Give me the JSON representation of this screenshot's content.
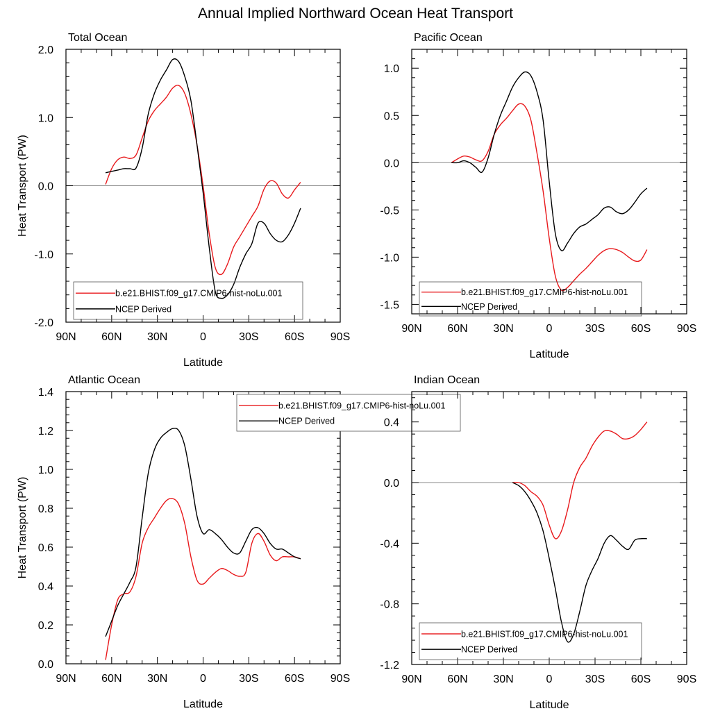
{
  "figure_title": "Annual Implied Northward Ocean Heat Transport",
  "legend": {
    "model_label": "b.e21.BHIST.f09_g17.CMIP6-hist-noLu.001",
    "obs_label": "NCEP Derived"
  },
  "colors": {
    "model": "#e8191c",
    "obs": "#000000",
    "zero_line": "#888888",
    "frame": "#000000"
  },
  "chart_data": [
    {
      "type": "line",
      "title": "Total Ocean",
      "xlabel": "Latitude",
      "ylabel": "Heat Transport (PW)",
      "x_axis_note": "latitude in degrees, positive = north",
      "xlim": [
        90,
        -90
      ],
      "x_ticks": [
        90,
        60,
        30,
        0,
        -30,
        -60,
        -90
      ],
      "x_tick_labels": [
        "90N",
        "60N",
        "30N",
        "0",
        "30S",
        "60S",
        "90S"
      ],
      "ylim": [
        -2.0,
        2.0
      ],
      "y_ticks": [
        -2.0,
        -1.0,
        0.0,
        1.0,
        2.0
      ],
      "y_tick_labels": [
        "-2.0",
        "-1.0",
        "0.0",
        "1.0",
        "2.0"
      ],
      "legend_position": "bottom-left",
      "series": [
        {
          "name": "b.e21.BHIST.f09_g17.CMIP6-hist-noLu.001",
          "color": "#e8191c",
          "x": [
            64,
            60,
            56,
            52,
            48,
            44,
            40,
            36,
            32,
            28,
            24,
            20,
            16,
            12,
            8,
            4,
            0,
            -4,
            -8,
            -12,
            -16,
            -20,
            -24,
            -28,
            -32,
            -36,
            -40,
            -44,
            -48,
            -52,
            -56,
            -60,
            -64
          ],
          "y": [
            0.02,
            0.25,
            0.38,
            0.42,
            0.4,
            0.45,
            0.7,
            0.95,
            1.1,
            1.2,
            1.3,
            1.43,
            1.47,
            1.35,
            1.05,
            0.6,
            0.0,
            -0.7,
            -1.2,
            -1.3,
            -1.15,
            -0.9,
            -0.75,
            -0.6,
            -0.45,
            -0.3,
            -0.05,
            0.07,
            0.04,
            -0.12,
            -0.18,
            -0.06,
            0.05
          ]
        },
        {
          "name": "NCEP Derived",
          "color": "#000000",
          "x": [
            64,
            60,
            56,
            52,
            48,
            44,
            40,
            36,
            32,
            28,
            24,
            20,
            16,
            12,
            8,
            4,
            0,
            -4,
            -8,
            -12,
            -16,
            -20,
            -24,
            -28,
            -32,
            -36,
            -40,
            -44,
            -48,
            -52,
            -56,
            -60,
            -64
          ],
          "y": [
            0.19,
            0.21,
            0.23,
            0.25,
            0.25,
            0.26,
            0.55,
            1.05,
            1.35,
            1.55,
            1.7,
            1.85,
            1.82,
            1.6,
            1.25,
            0.6,
            -0.1,
            -0.9,
            -1.55,
            -1.65,
            -1.6,
            -1.45,
            -1.2,
            -1.0,
            -0.85,
            -0.55,
            -0.55,
            -0.7,
            -0.8,
            -0.82,
            -0.72,
            -0.55,
            -0.33
          ]
        }
      ]
    },
    {
      "type": "line",
      "title": "Pacific Ocean",
      "xlabel": "Latitude",
      "ylabel": "",
      "xlim": [
        90,
        -90
      ],
      "x_ticks": [
        90,
        60,
        30,
        0,
        -30,
        -60,
        -90
      ],
      "x_tick_labels": [
        "90N",
        "60N",
        "30N",
        "0",
        "30S",
        "60S",
        "90S"
      ],
      "ylim": [
        -1.6,
        1.2
      ],
      "y_ticks": [
        -1.5,
        -1.0,
        -0.5,
        0.0,
        0.5,
        1.0
      ],
      "y_tick_labels": [
        "-1.5",
        "-1.0",
        "-0.5",
        "0.0",
        "0.5",
        "1.0"
      ],
      "legend_position": "bottom-left",
      "series": [
        {
          "name": "b.e21.BHIST.f09_g17.CMIP6-hist-noLu.001",
          "color": "#e8191c",
          "x": [
            64,
            60,
            56,
            52,
            48,
            44,
            40,
            36,
            32,
            28,
            24,
            20,
            16,
            12,
            8,
            4,
            0,
            -4,
            -8,
            -12,
            -16,
            -20,
            -24,
            -28,
            -32,
            -36,
            -40,
            -44,
            -48,
            -52,
            -56,
            -60,
            -64
          ],
          "y": [
            0.0,
            0.04,
            0.07,
            0.06,
            0.03,
            0.02,
            0.12,
            0.3,
            0.4,
            0.47,
            0.55,
            0.62,
            0.6,
            0.45,
            0.1,
            -0.3,
            -0.8,
            -1.2,
            -1.35,
            -1.32,
            -1.25,
            -1.18,
            -1.12,
            -1.05,
            -0.98,
            -0.93,
            -0.91,
            -0.92,
            -0.95,
            -1.0,
            -1.04,
            -1.03,
            -0.92
          ]
        },
        {
          "name": "NCEP Derived",
          "color": "#000000",
          "x": [
            64,
            60,
            56,
            52,
            48,
            44,
            40,
            36,
            32,
            28,
            24,
            20,
            16,
            12,
            8,
            4,
            0,
            -4,
            -8,
            -12,
            -16,
            -20,
            -24,
            -28,
            -32,
            -36,
            -40,
            -44,
            -48,
            -52,
            -56,
            -60,
            -64
          ],
          "y": [
            0.0,
            0.0,
            0.02,
            0.0,
            -0.05,
            -0.1,
            0.05,
            0.3,
            0.5,
            0.65,
            0.8,
            0.9,
            0.96,
            0.92,
            0.75,
            0.45,
            -0.2,
            -0.75,
            -0.93,
            -0.85,
            -0.75,
            -0.68,
            -0.65,
            -0.6,
            -0.55,
            -0.48,
            -0.47,
            -0.52,
            -0.54,
            -0.5,
            -0.42,
            -0.33,
            -0.27
          ]
        }
      ]
    },
    {
      "type": "line",
      "title": "Atlantic Ocean",
      "xlabel": "Latitude",
      "ylabel": "Heat Transport (PW)",
      "xlim": [
        90,
        -90
      ],
      "x_ticks": [
        90,
        60,
        30,
        0,
        -30,
        -60,
        -90
      ],
      "x_tick_labels": [
        "90N",
        "60N",
        "30N",
        "0",
        "30S",
        "60S",
        "90S"
      ],
      "ylim": [
        0.0,
        1.4
      ],
      "y_ticks": [
        0.0,
        0.2,
        0.4,
        0.6,
        0.8,
        1.0,
        1.2,
        1.4
      ],
      "y_tick_labels": [
        "0.0",
        "0.2",
        "0.4",
        "0.6",
        "0.8",
        "1.0",
        "1.2",
        "1.4"
      ],
      "legend_position": "top-center",
      "series": [
        {
          "name": "b.e21.BHIST.f09_g17.CMIP6-hist-noLu.001",
          "color": "#e8191c",
          "x": [
            64,
            60,
            56,
            52,
            48,
            44,
            40,
            36,
            32,
            28,
            24,
            20,
            16,
            12,
            8,
            4,
            0,
            -4,
            -8,
            -12,
            -16,
            -20,
            -24,
            -28,
            -32,
            -36,
            -40,
            -44,
            -48,
            -52,
            -56,
            -60,
            -64
          ],
          "y": [
            0.02,
            0.2,
            0.33,
            0.36,
            0.37,
            0.45,
            0.62,
            0.7,
            0.75,
            0.8,
            0.84,
            0.85,
            0.82,
            0.72,
            0.55,
            0.43,
            0.41,
            0.44,
            0.47,
            0.49,
            0.48,
            0.46,
            0.45,
            0.47,
            0.62,
            0.67,
            0.63,
            0.56,
            0.53,
            0.55,
            0.55,
            0.55,
            0.54
          ]
        },
        {
          "name": "NCEP Derived",
          "color": "#000000",
          "x": [
            64,
            60,
            56,
            52,
            48,
            44,
            40,
            36,
            32,
            28,
            24,
            20,
            16,
            12,
            8,
            4,
            0,
            -4,
            -8,
            -12,
            -16,
            -20,
            -24,
            -28,
            -32,
            -36,
            -40,
            -44,
            -48,
            -52,
            -56,
            -60,
            -64
          ],
          "y": [
            0.14,
            0.22,
            0.3,
            0.36,
            0.42,
            0.5,
            0.75,
            0.98,
            1.1,
            1.16,
            1.19,
            1.21,
            1.2,
            1.12,
            0.95,
            0.76,
            0.67,
            0.69,
            0.67,
            0.64,
            0.6,
            0.57,
            0.57,
            0.63,
            0.69,
            0.7,
            0.67,
            0.62,
            0.59,
            0.59,
            0.57,
            0.55,
            0.54
          ]
        }
      ]
    },
    {
      "type": "line",
      "title": "Indian Ocean",
      "xlabel": "Latitude",
      "ylabel": "",
      "xlim": [
        90,
        -90
      ],
      "x_ticks": [
        90,
        60,
        30,
        0,
        -30,
        -60,
        -90
      ],
      "x_tick_labels": [
        "90N",
        "60N",
        "30N",
        "0",
        "30S",
        "60S",
        "90S"
      ],
      "ylim": [
        -1.2,
        0.6
      ],
      "y_ticks": [
        -1.2,
        -0.8,
        -0.4,
        0.0,
        0.4
      ],
      "y_tick_labels": [
        "-1.2",
        "-0.8",
        "-0.4",
        "0.0",
        "0.4"
      ],
      "legend_position": "bottom-left",
      "series": [
        {
          "name": "b.e21.BHIST.f09_g17.CMIP6-hist-noLu.001",
          "color": "#e8191c",
          "x": [
            24,
            20,
            16,
            12,
            8,
            4,
            0,
            -4,
            -8,
            -12,
            -16,
            -20,
            -24,
            -28,
            -32,
            -36,
            -40,
            -44,
            -48,
            -52,
            -56,
            -60,
            -64
          ],
          "y": [
            0.0,
            0.0,
            -0.02,
            -0.06,
            -0.09,
            -0.15,
            -0.28,
            -0.37,
            -0.32,
            -0.18,
            0.0,
            0.1,
            0.16,
            0.24,
            0.3,
            0.34,
            0.34,
            0.32,
            0.29,
            0.29,
            0.31,
            0.35,
            0.4
          ]
        },
        {
          "name": "NCEP Derived",
          "color": "#000000",
          "x": [
            24,
            20,
            16,
            12,
            8,
            4,
            0,
            -4,
            -8,
            -12,
            -16,
            -20,
            -24,
            -28,
            -32,
            -36,
            -40,
            -44,
            -48,
            -52,
            -56,
            -60,
            -64
          ],
          "y": [
            0.0,
            -0.02,
            -0.06,
            -0.12,
            -0.2,
            -0.32,
            -0.5,
            -0.7,
            -0.92,
            -1.05,
            -1.0,
            -0.85,
            -0.68,
            -0.58,
            -0.5,
            -0.4,
            -0.35,
            -0.38,
            -0.42,
            -0.44,
            -0.38,
            -0.37,
            -0.37
          ]
        }
      ]
    }
  ]
}
